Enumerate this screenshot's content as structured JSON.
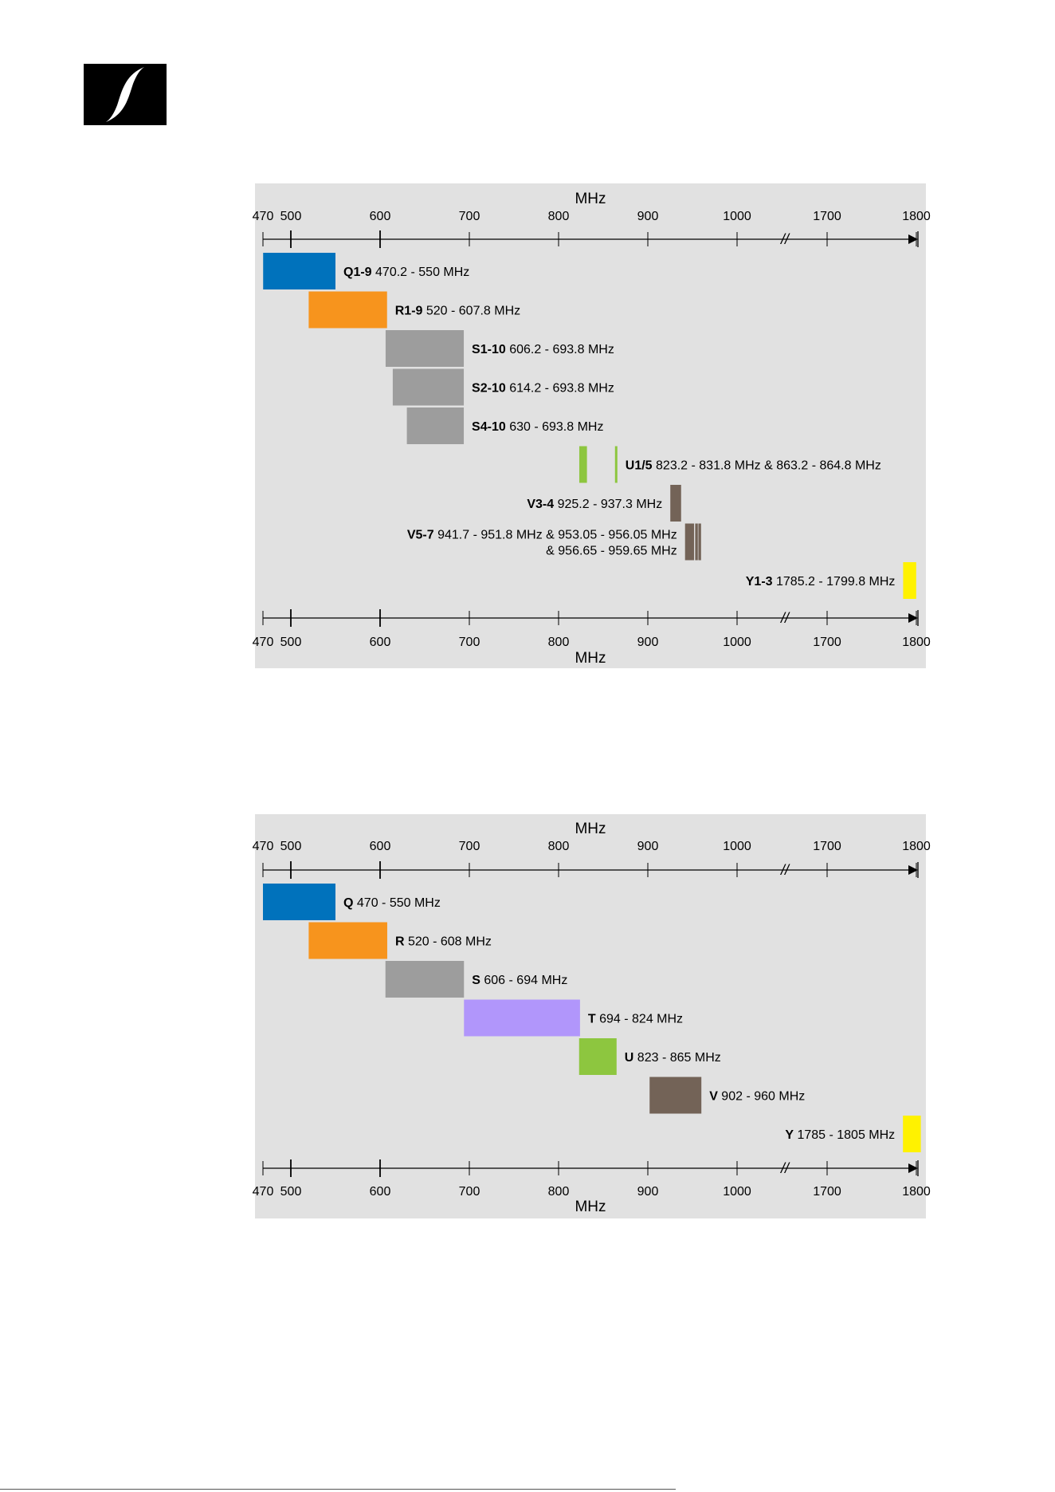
{
  "logo": {
    "name": "sennheiser-logo-icon"
  },
  "chart_data": [
    {
      "type": "bar",
      "axis": {
        "label": "MHz",
        "ticks": [
          "470",
          "500",
          "600",
          "700",
          "800",
          "900",
          "1000",
          "1700",
          "1800"
        ],
        "break_between": [
          "1000",
          "1700"
        ],
        "break_marker": "//"
      },
      "series": [
        {
          "name": "Q1-9",
          "desc": "470.2 - 550 MHz",
          "ranges": [
            [
              470.2,
              550
            ]
          ],
          "color": "#0072bc"
        },
        {
          "name": "R1-9",
          "desc": "520 - 607.8 MHz",
          "ranges": [
            [
              520,
              607.8
            ]
          ],
          "color": "#f7941d"
        },
        {
          "name": "S1-10",
          "desc": "606.2 - 693.8 MHz",
          "ranges": [
            [
              606.2,
              693.8
            ]
          ],
          "color": "#9d9d9d"
        },
        {
          "name": "S2-10",
          "desc": "614.2 - 693.8 MHz",
          "ranges": [
            [
              614.2,
              693.8
            ]
          ],
          "color": "#9d9d9d"
        },
        {
          "name": "S4-10",
          "desc": "630 - 693.8 MHz",
          "ranges": [
            [
              630,
              693.8
            ]
          ],
          "color": "#9d9d9d"
        },
        {
          "name": "U1/5",
          "desc": "823.2 - 831.8 MHz & 863.2 - 864.8 MHz",
          "ranges": [
            [
              823.2,
              831.8
            ],
            [
              863.2,
              864.8
            ]
          ],
          "color": "#8dc63f"
        },
        {
          "name": "V3-4",
          "desc": "925.2 - 937.3 MHz",
          "ranges": [
            [
              925.2,
              937.3
            ]
          ],
          "color": "#736357"
        },
        {
          "name": "V5-7",
          "desc": "941.7 - 951.8 MHz & 953.05 - 956.05 MHz",
          "desc2": "& 956.65 - 959.65 MHz",
          "ranges": [
            [
              941.7,
              951.8
            ],
            [
              953.05,
              956.05
            ],
            [
              956.65,
              959.65
            ]
          ],
          "color": "#736357"
        },
        {
          "name": "Y1-3",
          "desc": "1785.2 - 1799.8 MHz",
          "ranges": [
            [
              1785.2,
              1799.8
            ]
          ],
          "color": "#fff200"
        }
      ]
    },
    {
      "type": "bar",
      "axis": {
        "label": "MHz",
        "ticks": [
          "470",
          "500",
          "600",
          "700",
          "800",
          "900",
          "1000",
          "1700",
          "1800"
        ],
        "break_between": [
          "1000",
          "1700"
        ],
        "break_marker": "//"
      },
      "series": [
        {
          "name": "Q",
          "desc": "470 - 550 MHz",
          "ranges": [
            [
              470,
              550
            ]
          ],
          "color": "#0072bc"
        },
        {
          "name": "R",
          "desc": "520 - 608 MHz",
          "ranges": [
            [
              520,
              608
            ]
          ],
          "color": "#f7941d"
        },
        {
          "name": "S",
          "desc": "606 - 694 MHz",
          "ranges": [
            [
              606,
              694
            ]
          ],
          "color": "#9d9d9d"
        },
        {
          "name": "T",
          "desc": "694 - 824 MHz",
          "ranges": [
            [
              694,
              824
            ]
          ],
          "color": "#b196fb"
        },
        {
          "name": "U",
          "desc": "823 - 865 MHz",
          "ranges": [
            [
              823,
              865
            ]
          ],
          "color": "#8dc63f"
        },
        {
          "name": "V",
          "desc": "902 - 960 MHz",
          "ranges": [
            [
              902,
              960
            ]
          ],
          "color": "#736357"
        },
        {
          "name": "Y",
          "desc": "1785 - 1805 MHz",
          "ranges": [
            [
              1785,
              1805
            ]
          ],
          "color": "#fff200"
        }
      ]
    }
  ]
}
